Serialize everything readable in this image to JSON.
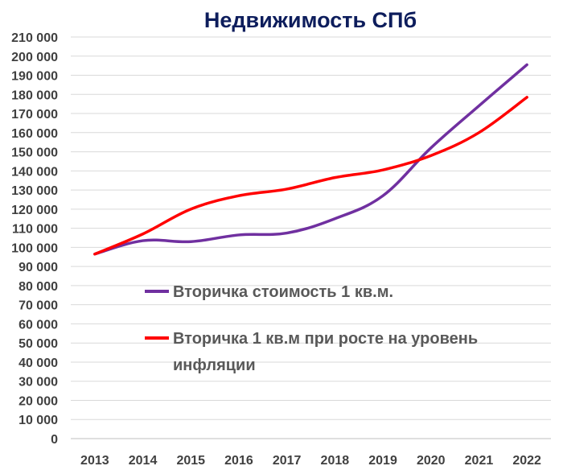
{
  "chart_data": {
    "type": "line",
    "title": "Недвижимость СПб",
    "xlabel": "",
    "ylabel": "",
    "categories": [
      "2013",
      "2014",
      "2015",
      "2016",
      "2017",
      "2018",
      "2019",
      "2020",
      "2021",
      "2022"
    ],
    "ylim": [
      0,
      210000
    ],
    "y_ticks": [
      "0",
      "10 000",
      "20 000",
      "30 000",
      "40 000",
      "50 000",
      "60 000",
      "70 000",
      "80 000",
      "90 000",
      "100 000",
      "110 000",
      "120 000",
      "130 000",
      "140 000",
      "150 000",
      "160 000",
      "170 000",
      "180 000",
      "190 000",
      "200 000",
      "210 000"
    ],
    "grid": true,
    "legend_position": "center",
    "series": [
      {
        "name": "Вторичка стоимость 1 кв.м.",
        "color": "#7030a0",
        "values": [
          96500,
          103500,
          103000,
          106500,
          107500,
          115000,
          127000,
          152000,
          174000,
          195500
        ]
      },
      {
        "name": "Вторичка 1 кв.м при росте на уровень инфляции",
        "name_lines": [
          "Вторичка 1 кв.м при росте на уровень",
          "инфляции"
        ],
        "color": "#ff0000",
        "values": [
          96500,
          107000,
          120000,
          127000,
          130500,
          136500,
          140500,
          148000,
          160000,
          178500
        ]
      }
    ]
  }
}
